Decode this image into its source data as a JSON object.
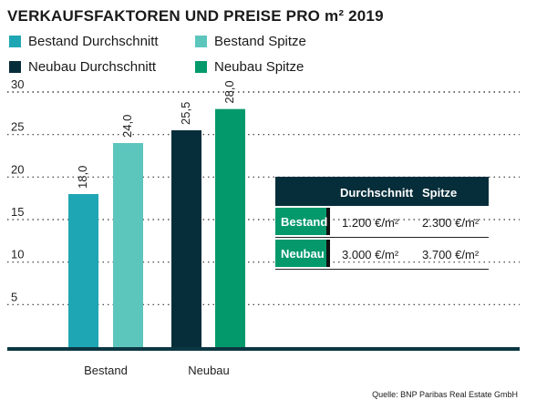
{
  "title": "VERKAUFSFAKTOREN UND PREISE PRO m² 2019",
  "legend": [
    {
      "label": "Bestand Durchschnitt",
      "color": "#1fa6b4"
    },
    {
      "label": "Bestand Spitze",
      "color": "#5cc6bd"
    },
    {
      "label": "Neubau Durchschnitt",
      "color": "#062d3a"
    },
    {
      "label": "Neubau Spitze",
      "color": "#03996b"
    }
  ],
  "chart_data": {
    "type": "bar",
    "title": "VERKAUFSFAKTOREN UND PREISE PRO m² 2019",
    "categories": [
      "Bestand",
      "Neubau"
    ],
    "series": [
      {
        "name": "Bestand Durchschnitt",
        "category": "Bestand",
        "value": 18.0,
        "label": "18,0",
        "color": "#1fa6b4"
      },
      {
        "name": "Bestand Spitze",
        "category": "Bestand",
        "value": 24.0,
        "label": "24,0",
        "color": "#5cc6bd"
      },
      {
        "name": "Neubau Durchschnitt",
        "category": "Neubau",
        "value": 25.5,
        "label": "25,5",
        "color": "#062d3a"
      },
      {
        "name": "Neubau Spitze",
        "category": "Neubau",
        "value": 28.0,
        "label": "28,0",
        "color": "#03996b"
      }
    ],
    "yticks": [
      5,
      10,
      15,
      20,
      25,
      30
    ],
    "ylim": [
      0,
      30
    ],
    "grid": "dotted horizontal",
    "xlabel": "",
    "ylabel": ""
  },
  "table": {
    "headers": [
      "Durchschnitt",
      "Spitze"
    ],
    "rows": [
      {
        "label": "Bestand",
        "values": [
          "1.200 €/m²",
          "2.300 €/m²"
        ]
      },
      {
        "label": "Neubau",
        "values": [
          "3.000 €/m²",
          "3.700 €/m²"
        ]
      }
    ]
  },
  "source": "Quelle: BNP Paribas Real Estate GmbH"
}
